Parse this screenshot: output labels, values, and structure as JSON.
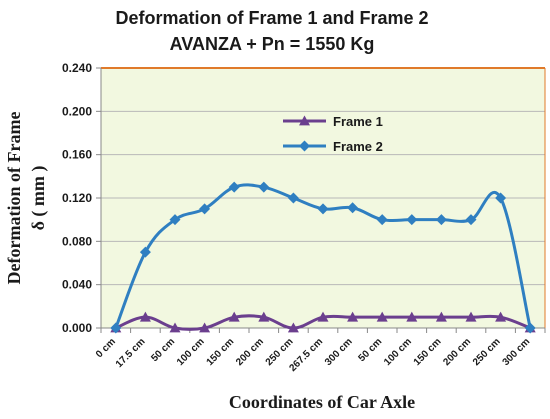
{
  "chart_data": {
    "type": "line",
    "title_line1": "Deformation of Frame 1 and Frame 2",
    "title_line2": "AVANZA + Pn  = 1550 Kg",
    "xlabel": "Coordinates of Car Axle",
    "ylabel_line1": "Deformation of Frame",
    "ylabel_line2": "δ  ( mm )",
    "categories": [
      "0 cm",
      "17.5 cm",
      "50 cm",
      "100 cm",
      "150 cm",
      "200 cm",
      "250 cm",
      "267.5 cm",
      "300 cm",
      "50 cm",
      "100 cm",
      "150 cm",
      "200 cm",
      "250 cm",
      "300 cm"
    ],
    "ylim": [
      0,
      0.24
    ],
    "yticks": [
      "0.000",
      "0.040",
      "0.080",
      "0.120",
      "0.160",
      "0.200",
      "0.240"
    ],
    "grid": true,
    "legend_position": "top-right",
    "plot_background": "#f2f8e0",
    "series": [
      {
        "name": "Frame 1",
        "marker": "triangle",
        "color": "#6b3f8e",
        "values": [
          0,
          0.01,
          0,
          0,
          0.01,
          0.01,
          0,
          0.01,
          0.01,
          0.01,
          0.01,
          0.01,
          0.01,
          0.01,
          0
        ]
      },
      {
        "name": "Frame 2",
        "marker": "diamond",
        "color": "#2f7fc1",
        "values": [
          0,
          0.07,
          0.1,
          0.11,
          0.13,
          0.13,
          0.12,
          0.11,
          0.111,
          0.1,
          0.1,
          0.1,
          0.1,
          0.12,
          0
        ]
      }
    ]
  }
}
